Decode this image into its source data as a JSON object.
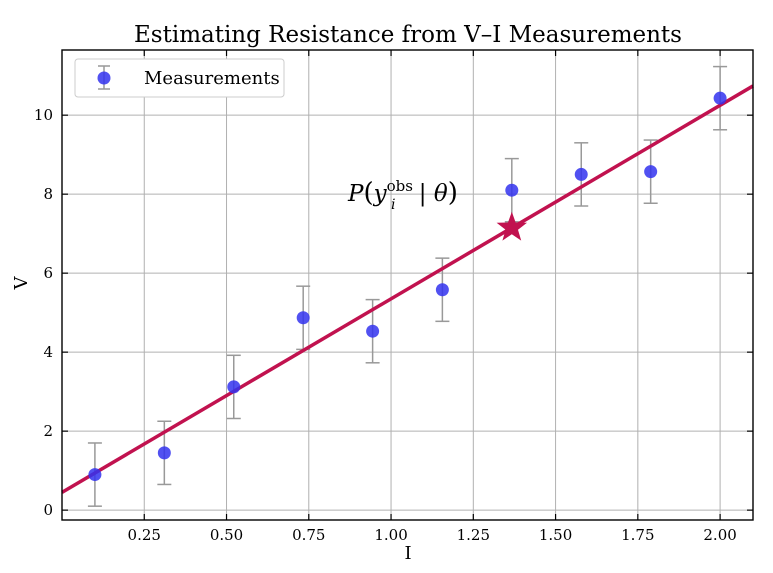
{
  "chart_data": {
    "type": "scatter",
    "title": "Estimating Resistance from V–I Measurements",
    "xlabel": "I",
    "ylabel": "V",
    "xlim": [
      0.0,
      2.1
    ],
    "ylim": [
      -0.25,
      11.65
    ],
    "xticks": [
      0.25,
      0.5,
      0.75,
      1.0,
      1.25,
      1.5,
      1.75,
      2.0
    ],
    "xtick_labels": [
      "0.25",
      "0.50",
      "0.75",
      "1.00",
      "1.25",
      "1.50",
      "1.75",
      "2.00"
    ],
    "yticks": [
      0,
      2,
      4,
      6,
      8,
      10
    ],
    "ytick_labels": [
      "0",
      "2",
      "4",
      "6",
      "8",
      "10"
    ],
    "grid": true,
    "legend": {
      "placement": "upper-left",
      "entries": [
        "Measurements"
      ]
    },
    "series": [
      {
        "name": "Measurements",
        "type": "scatter",
        "color": "#3333ee",
        "x": [
          0.1,
          0.311,
          0.522,
          0.733,
          0.944,
          1.156,
          1.367,
          1.578,
          1.789,
          2.0
        ],
        "y": [
          0.9,
          1.45,
          3.12,
          4.87,
          4.53,
          5.58,
          8.1,
          8.5,
          8.57,
          10.43
        ],
        "yerr": 0.8,
        "errorbar_color": "#999999"
      }
    ],
    "fit_line": {
      "color": "#c1124f",
      "slope": 4.9,
      "intercept": 0.45
    },
    "highlight": {
      "marker": "star",
      "color": "#c1124f",
      "x": 1.367,
      "y": 7.15
    },
    "annotation": {
      "P": "P",
      "y": "y",
      "sup": "obs",
      "sub": "i",
      "mid": " | ",
      "theta": "θ"
    }
  }
}
